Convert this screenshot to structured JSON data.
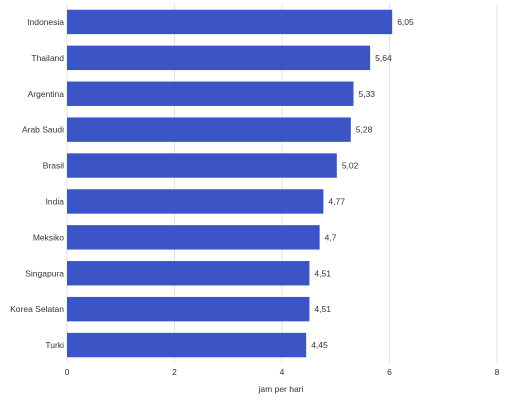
{
  "chart_data": {
    "type": "bar",
    "orientation": "horizontal",
    "categories": [
      "Indonesia",
      "Thailand",
      "Argentina",
      "Arab Saudi",
      "Brasil",
      "India",
      "Meksiko",
      "Singapura",
      "Korea Selatan",
      "Turki"
    ],
    "values": [
      6.05,
      5.64,
      5.33,
      5.28,
      5.02,
      4.77,
      4.7,
      4.51,
      4.51,
      4.45
    ],
    "value_labels": [
      "6,05",
      "5,64",
      "5,33",
      "5,28",
      "5,02",
      "4,77",
      "4,7",
      "4,51",
      "4,51",
      "4,45"
    ],
    "xlabel": "jam per hari",
    "xlim": [
      0,
      8
    ],
    "xticks": [
      0,
      2,
      4,
      6,
      8
    ],
    "grid": true,
    "bar_color": "#3b55c7"
  }
}
